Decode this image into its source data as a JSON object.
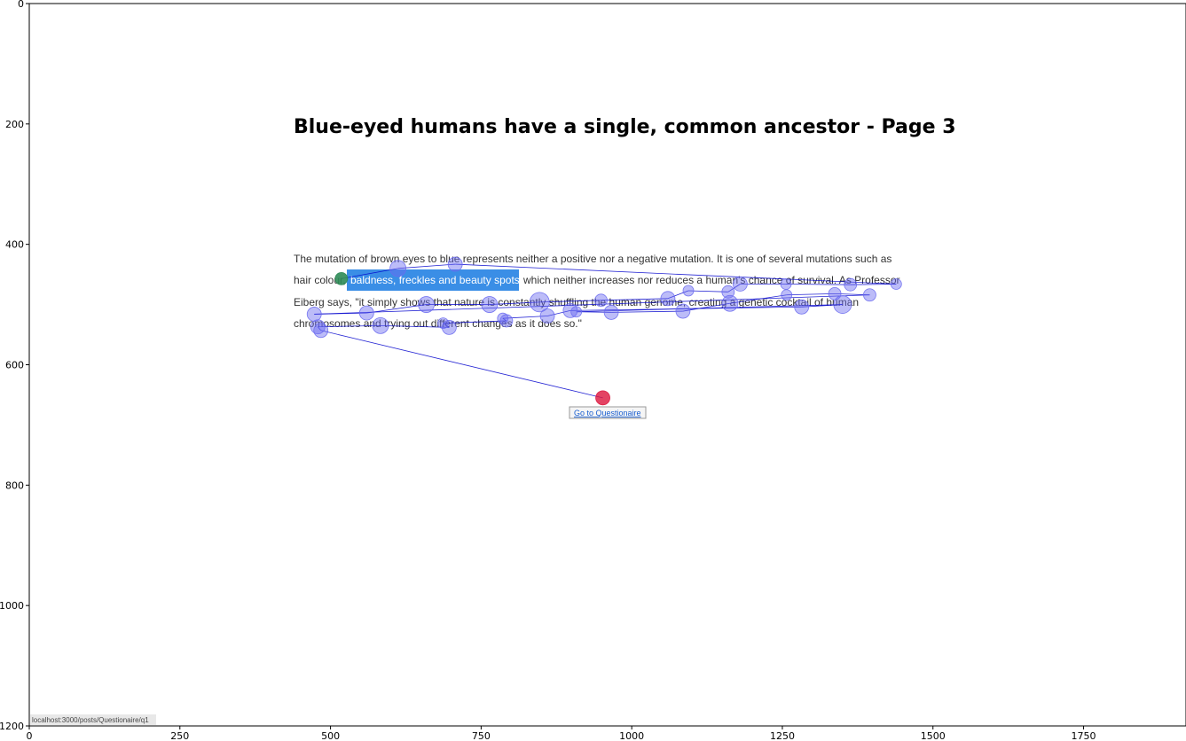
{
  "page": {
    "title": "Blue-eyed humans have a single, common ancestor - Page 3",
    "paragraph_lines": [
      "The mutation of brown eyes to blue represents neither a positive nor a negative mutation. It is one of several mutations such as",
      "hair colour,",
      "which neither increases nor reduces a human's chance of survival. As Professor",
      "Eiberg says, \"it simply shows that nature is constantly shuffling the human genome, creating a genetic cocktail of human",
      "chromosomes and trying out different changes as it does so.\""
    ],
    "highlight_text": "baldness, freckles and beauty spots",
    "highlight_color": "#3a8ee6",
    "link_text": "Go to Questionaire",
    "status_url": "localhost:3000/posts/Questionaire/q1"
  },
  "chart_data": {
    "type": "scatter",
    "title": "",
    "xlabel": "",
    "ylabel": "",
    "xlim": [
      0,
      1920
    ],
    "ylim": [
      1200,
      0
    ],
    "xticks": [
      0,
      250,
      500,
      750,
      1000,
      1250,
      1500,
      1750
    ],
    "yticks": [
      0,
      200,
      400,
      600,
      800,
      1000,
      1200
    ],
    "grid": false,
    "scanpath_color": "#0000cc",
    "fixation_color": "#6a6af0",
    "start_color": "#2e8b57",
    "end_color": "#dc143c",
    "fixations": [
      {
        "x": 518,
        "y": 457,
        "r": 7,
        "role": "start"
      },
      {
        "x": 612,
        "y": 440,
        "r": 9
      },
      {
        "x": 707,
        "y": 433,
        "r": 8
      },
      {
        "x": 1439,
        "y": 466,
        "r": 6
      },
      {
        "x": 1363,
        "y": 467,
        "r": 7
      },
      {
        "x": 1256,
        "y": 466,
        "r": 6
      },
      {
        "x": 1180,
        "y": 466,
        "r": 8
      },
      {
        "x": 1160,
        "y": 479,
        "r": 7
      },
      {
        "x": 1094,
        "y": 477,
        "r": 6
      },
      {
        "x": 1060,
        "y": 490,
        "r": 8
      },
      {
        "x": 949,
        "y": 493,
        "r": 7
      },
      {
        "x": 847,
        "y": 496,
        "r": 11
      },
      {
        "x": 764,
        "y": 500,
        "r": 9
      },
      {
        "x": 659,
        "y": 500,
        "r": 9
      },
      {
        "x": 560,
        "y": 514,
        "r": 8
      },
      {
        "x": 473,
        "y": 516,
        "r": 8
      },
      {
        "x": 1395,
        "y": 484,
        "r": 7
      },
      {
        "x": 1337,
        "y": 482,
        "r": 7
      },
      {
        "x": 1257,
        "y": 484,
        "r": 6
      },
      {
        "x": 1163,
        "y": 498,
        "r": 9
      },
      {
        "x": 1085,
        "y": 511,
        "r": 8
      },
      {
        "x": 966,
        "y": 513,
        "r": 8
      },
      {
        "x": 908,
        "y": 512,
        "r": 6
      },
      {
        "x": 1350,
        "y": 500,
        "r": 10
      },
      {
        "x": 1282,
        "y": 504,
        "r": 8
      },
      {
        "x": 898,
        "y": 510,
        "r": 8
      },
      {
        "x": 860,
        "y": 519,
        "r": 8
      },
      {
        "x": 786,
        "y": 523,
        "r": 6
      },
      {
        "x": 792,
        "y": 527,
        "r": 7
      },
      {
        "x": 687,
        "y": 531,
        "r": 6
      },
      {
        "x": 697,
        "y": 538,
        "r": 8
      },
      {
        "x": 583,
        "y": 535,
        "r": 9
      },
      {
        "x": 479,
        "y": 537,
        "r": 8
      },
      {
        "x": 484,
        "y": 543,
        "r": 8
      },
      {
        "x": 952,
        "y": 655,
        "r": 8,
        "role": "end"
      }
    ]
  }
}
